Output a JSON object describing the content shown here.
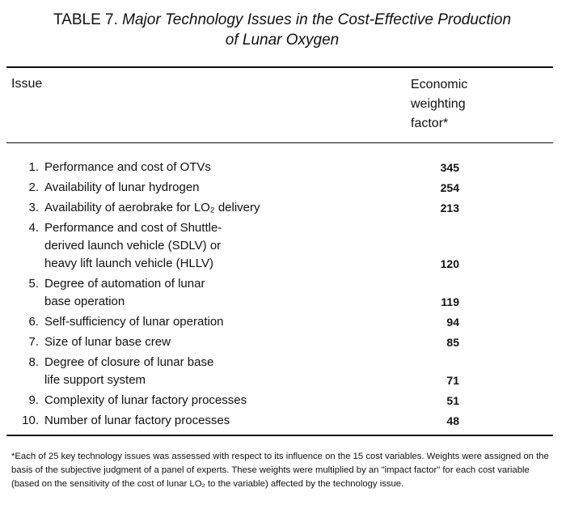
{
  "title": {
    "label": "TABLE 7.",
    "line1": "Major Technology Issues in the Cost-Effective Production",
    "line2": "of Lunar Oxygen"
  },
  "header": {
    "issue": "Issue",
    "weight_line1": "Economic",
    "weight_line2": "weighting",
    "weight_line3": "factor*"
  },
  "rows": [
    {
      "num": "1.",
      "lines": [
        "Performance and cost of OTVs"
      ],
      "value": "345"
    },
    {
      "num": "2.",
      "lines": [
        "Availability of lunar hydrogen"
      ],
      "value": "254"
    },
    {
      "num": "3.",
      "lines": [
        "Availability of aerobrake for LO₂ delivery"
      ],
      "value": "213"
    },
    {
      "num": "4.",
      "lines": [
        "Performance and cost of Shuttle-",
        "derived launch vehicle (SDLV) or",
        "heavy lift launch vehicle (HLLV)"
      ],
      "value": "120"
    },
    {
      "num": "5.",
      "lines": [
        "Degree of automation of lunar",
        "base operation"
      ],
      "value": "119"
    },
    {
      "num": "6.",
      "lines": [
        "Self-sufficiency of lunar operation"
      ],
      "value": "94"
    },
    {
      "num": "7.",
      "lines": [
        "Size of lunar base crew"
      ],
      "value": "85"
    },
    {
      "num": "8.",
      "lines": [
        "Degree of closure of lunar base",
        "life support system"
      ],
      "value": "71"
    },
    {
      "num": "9.",
      "lines": [
        "Complexity of lunar factory processes"
      ],
      "value": "51"
    },
    {
      "num": "10.",
      "lines": [
        "Number of lunar factory processes"
      ],
      "value": "48"
    }
  ],
  "footnote": "*Each of 25 key technology issues was assessed with respect to its influence on the 15 cost variables. Weights were assigned on the basis of the subjective judgment of a panel of experts. These weights were multiplied by an \"impact factor\" for each cost variable (based on the sensitivity of the cost of lunar LO₂ to the variable) affected by the technology issue."
}
